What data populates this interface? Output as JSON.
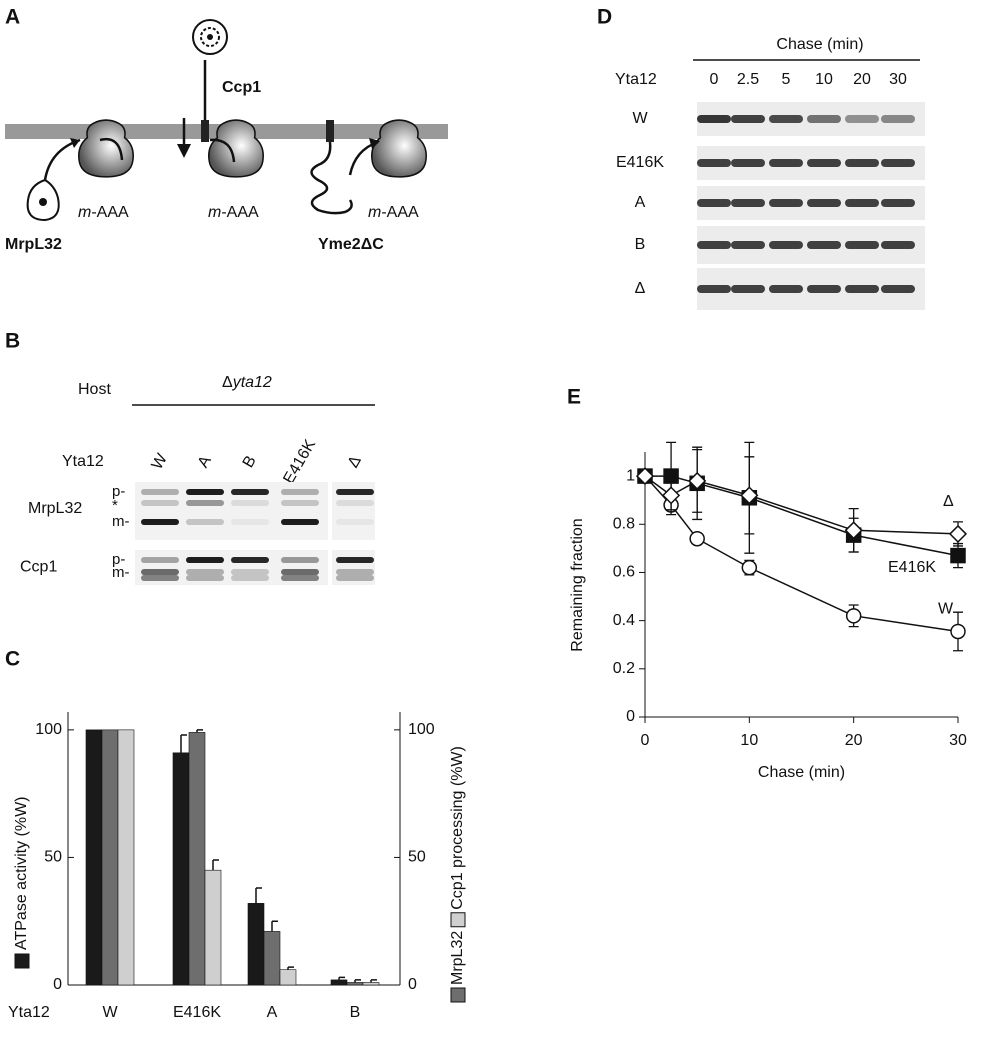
{
  "panel_labels": [
    "A",
    "B",
    "C",
    "D",
    "E"
  ],
  "diagram": {
    "ccp1": "Ccp1",
    "mrpl32": "MrpL32",
    "yme2": "Yme2ΔC",
    "protease": {
      "prefix": "m",
      "suffix": "-AAA"
    }
  },
  "blot_b": {
    "host": "Host",
    "strain_prefix": "Δ",
    "strain": "yta12",
    "yta12": "Yta12",
    "lanes": [
      "W",
      "A",
      "B",
      "E416K",
      "Δ"
    ],
    "rows": [
      {
        "name": "MrpL32",
        "markers": [
          "p-",
          "*",
          "m-"
        ]
      },
      {
        "name": "Ccp1",
        "markers": [
          "p-",
          "m-"
        ]
      }
    ]
  },
  "blot_d": {
    "chase": "Chase (min)",
    "yta12": "Yta12",
    "times": [
      "0",
      "2.5",
      "5",
      "10",
      "20",
      "30"
    ],
    "rows": [
      "W",
      "E416K",
      "A",
      "B",
      "Δ"
    ]
  },
  "chart_data": [
    {
      "type": "bar",
      "xlabel": "Yta12",
      "categories": [
        "W",
        "E416K",
        "A",
        "B"
      ],
      "series": [
        {
          "name": "ATPase activity (%W)",
          "color": "#1a1a1a",
          "values": [
            100,
            91,
            32,
            2
          ],
          "errors": [
            0,
            7,
            6,
            1
          ]
        },
        {
          "name": "MrpL32",
          "color": "#6e6e6e",
          "values": [
            100,
            99,
            21,
            1
          ],
          "errors": [
            0,
            1,
            4,
            1
          ],
          "axis": "y2"
        },
        {
          "name": "Ccp1 processing (%W)",
          "color": "#cfcfcf",
          "values": [
            100,
            45,
            6,
            1
          ],
          "errors": [
            0,
            4,
            1,
            1
          ],
          "axis": "y2"
        }
      ],
      "ylim": [
        0,
        107
      ],
      "yticks": [
        0,
        50,
        100
      ],
      "y2lim": [
        0,
        107
      ],
      "y2ticks": [
        0,
        50,
        100
      ]
    },
    {
      "type": "line",
      "xlabel": "Chase (min)",
      "ylabel": "Remaining fraction",
      "x": [
        0,
        2.5,
        5,
        10,
        20,
        30
      ],
      "series": [
        {
          "name": "W",
          "marker": "circle",
          "values": [
            1,
            0.88,
            0.74,
            0.62,
            0.42,
            0.355
          ],
          "errors": [
            0,
            0.02,
            0.01,
            0.03,
            0.045,
            0.08
          ]
        },
        {
          "name": "E416K",
          "marker": "square",
          "values": [
            1,
            1,
            0.97,
            0.91,
            0.755,
            0.67
          ],
          "errors": [
            0,
            0.14,
            0.15,
            0.23,
            0.07,
            0.05
          ]
        },
        {
          "name": "Δ",
          "marker": "diamond",
          "values": [
            1,
            0.92,
            0.98,
            0.92,
            0.775,
            0.76
          ],
          "errors": [
            0,
            0.08,
            0.13,
            0.16,
            0.09,
            0.05
          ]
        }
      ],
      "xlim": [
        0,
        30
      ],
      "xticks": [
        0,
        10,
        20,
        30
      ],
      "ylim": [
        0,
        1.1
      ],
      "yticks": [
        0,
        0.2,
        0.4,
        0.6,
        0.8,
        1
      ]
    }
  ]
}
